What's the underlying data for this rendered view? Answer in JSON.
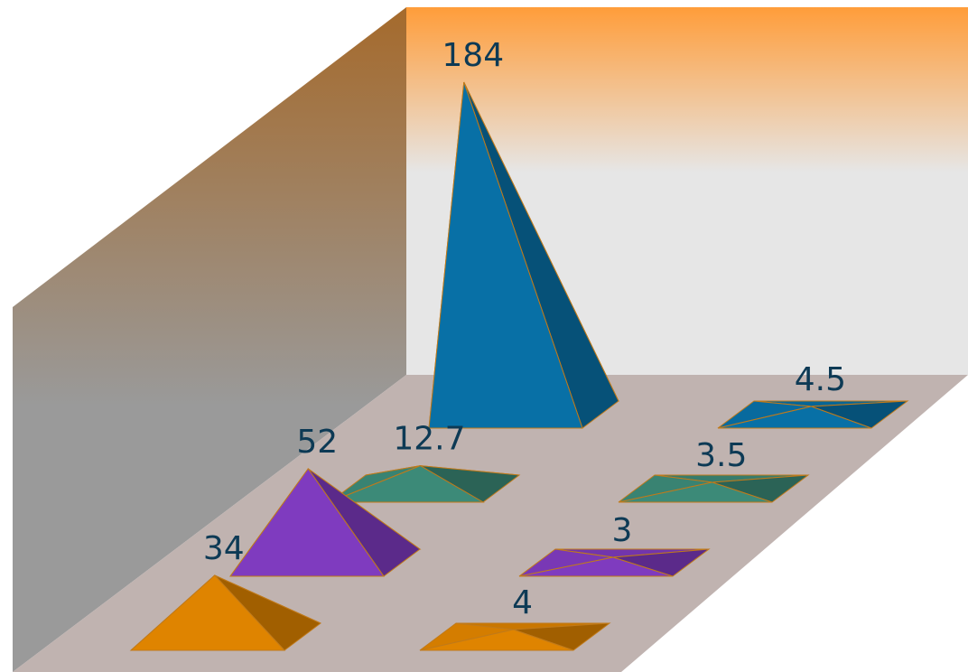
{
  "chart_data": {
    "type": "bar",
    "style": "3d-pyramid",
    "series": [
      {
        "name": "",
        "color": "#df8400",
        "values": [
          34,
          4
        ]
      },
      {
        "name": "",
        "color": "#7f3bbf",
        "values": [
          52,
          3
        ]
      },
      {
        "name": "",
        "color": "#3c8a78",
        "values": [
          12.7,
          3.5
        ]
      },
      {
        "name": "",
        "color": "#0870a6",
        "values": [
          184,
          4.5
        ]
      }
    ],
    "data_labels": [
      "34",
      "4",
      "52",
      "3",
      "12.7",
      "3.5",
      "184",
      "4.5"
    ],
    "grid": false,
    "legend": "none",
    "wall_gradient": [
      "#ff9d3a",
      "#e6e6e6"
    ],
    "side_wall_gradient": [
      "#a56a2c",
      "#9a9a9a"
    ],
    "floor_color": "#c0b3b0"
  }
}
